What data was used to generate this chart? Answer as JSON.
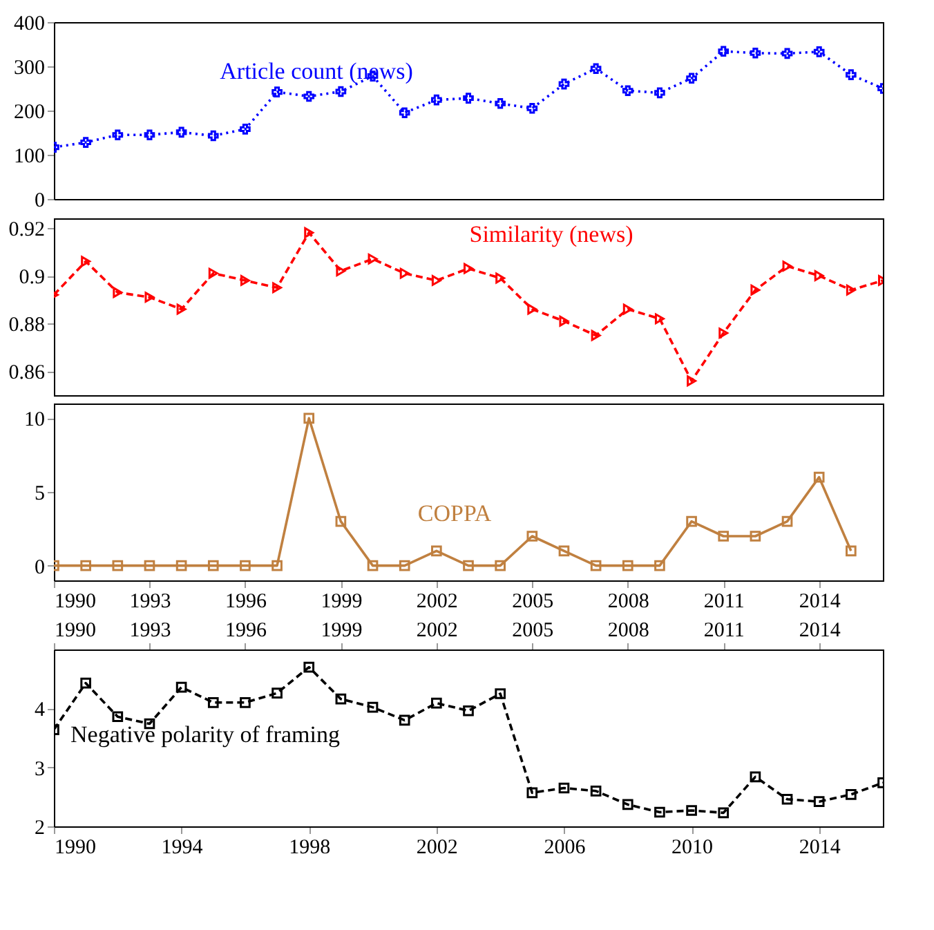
{
  "chart_data": [
    {
      "type": "line",
      "x": [
        1990,
        1991,
        1992,
        1993,
        1994,
        1995,
        1996,
        1997,
        1998,
        1999,
        2000,
        2001,
        2002,
        2003,
        2004,
        2005,
        2006,
        2007,
        2008,
        2009,
        2010,
        2011,
        2012,
        2013,
        2014,
        2015,
        2016
      ],
      "series": [
        {
          "name": "Article count (news)",
          "color": "#0000ff",
          "values": [
            117,
            128,
            145,
            145,
            151,
            143,
            158,
            242,
            232,
            243,
            278,
            195,
            224,
            228,
            216,
            205,
            260,
            295,
            245,
            240,
            273,
            334,
            330,
            329,
            333,
            281,
            250
          ]
        }
      ],
      "marker": "cross",
      "line_style": "dotted",
      "xlim": [
        1990,
        2016
      ],
      "ylim": [
        0,
        400
      ],
      "yticks": [
        0,
        100,
        200,
        300,
        400
      ],
      "tick_labels": "y",
      "grid": false
    },
    {
      "type": "line",
      "x": [
        1990,
        1991,
        1992,
        1993,
        1994,
        1995,
        1996,
        1997,
        1998,
        1999,
        2000,
        2001,
        2002,
        2003,
        2004,
        2005,
        2006,
        2007,
        2008,
        2009,
        2010,
        2011,
        2012,
        2013,
        2014,
        2015,
        2016
      ],
      "series": [
        {
          "name": "Similarity (news)",
          "color": "#ff0000",
          "values": [
            0.892,
            0.906,
            0.893,
            0.891,
            0.886,
            0.901,
            0.898,
            0.895,
            0.918,
            0.902,
            0.907,
            0.901,
            0.898,
            0.903,
            0.899,
            0.886,
            0.881,
            0.875,
            0.886,
            0.882,
            0.856,
            0.876,
            0.894,
            0.904,
            0.9,
            0.894,
            0.898
          ]
        }
      ],
      "marker": "triangle",
      "line_style": "dashed",
      "xlim": [
        1990,
        2016
      ],
      "ylim": [
        0.85,
        0.924
      ],
      "yticks": [
        0.86,
        0.88,
        0.9,
        0.92
      ],
      "tick_labels": "y",
      "grid": false
    },
    {
      "type": "line",
      "x": [
        1990,
        1991,
        1992,
        1993,
        1994,
        1995,
        1996,
        1997,
        1998,
        1999,
        2000,
        2001,
        2002,
        2003,
        2004,
        2005,
        2006,
        2007,
        2008,
        2009,
        2010,
        2011,
        2012,
        2013,
        2014,
        2015
      ],
      "series": [
        {
          "name": "COPPA",
          "color": "#c08040",
          "values": [
            0,
            0,
            0,
            0,
            0,
            0,
            0,
            0,
            10,
            3,
            0,
            0,
            1,
            0,
            0,
            2,
            1,
            0,
            0,
            0,
            3,
            2,
            2,
            3,
            6,
            1
          ]
        }
      ],
      "marker": "square",
      "line_style": "solid",
      "xlim": [
        1990,
        2016
      ],
      "xticks": [
        1990,
        1993,
        1996,
        1999,
        2002,
        2005,
        2008,
        2011,
        2014
      ],
      "ylim": [
        -1,
        11
      ],
      "yticks": [
        0,
        5,
        10
      ],
      "grid": false
    },
    {
      "type": "line",
      "x": [
        1990,
        1991,
        1992,
        1993,
        1994,
        1995,
        1996,
        1997,
        1998,
        1999,
        2000,
        2001,
        2002,
        2003,
        2004,
        2005,
        2006,
        2007,
        2008,
        2009,
        2010,
        2011,
        2012,
        2013,
        2014,
        2015,
        2016
      ],
      "series": [
        {
          "name": "Negative polarity of framing",
          "color": "#000000",
          "values": [
            3.64,
            4.43,
            3.86,
            3.74,
            4.36,
            4.1,
            4.1,
            4.26,
            4.7,
            4.16,
            4.02,
            3.8,
            4.09,
            3.96,
            4.25,
            2.57,
            2.65,
            2.6,
            2.37,
            2.24,
            2.27,
            2.23,
            2.84,
            2.46,
            2.42,
            2.54,
            2.74
          ]
        }
      ],
      "marker": "square",
      "line_style": "dashed",
      "xlim": [
        1990,
        2016
      ],
      "xticks": [
        1990,
        1994,
        1998,
        2002,
        2006,
        2010,
        2014
      ],
      "x2lim": [
        1990,
        2016
      ],
      "x2ticks": [
        1990,
        1993,
        1996,
        1999,
        2002,
        2005,
        2008,
        2011,
        2014
      ],
      "ylim": [
        2,
        5
      ],
      "yticks": [
        2,
        3,
        4
      ],
      "grid": false
    }
  ]
}
